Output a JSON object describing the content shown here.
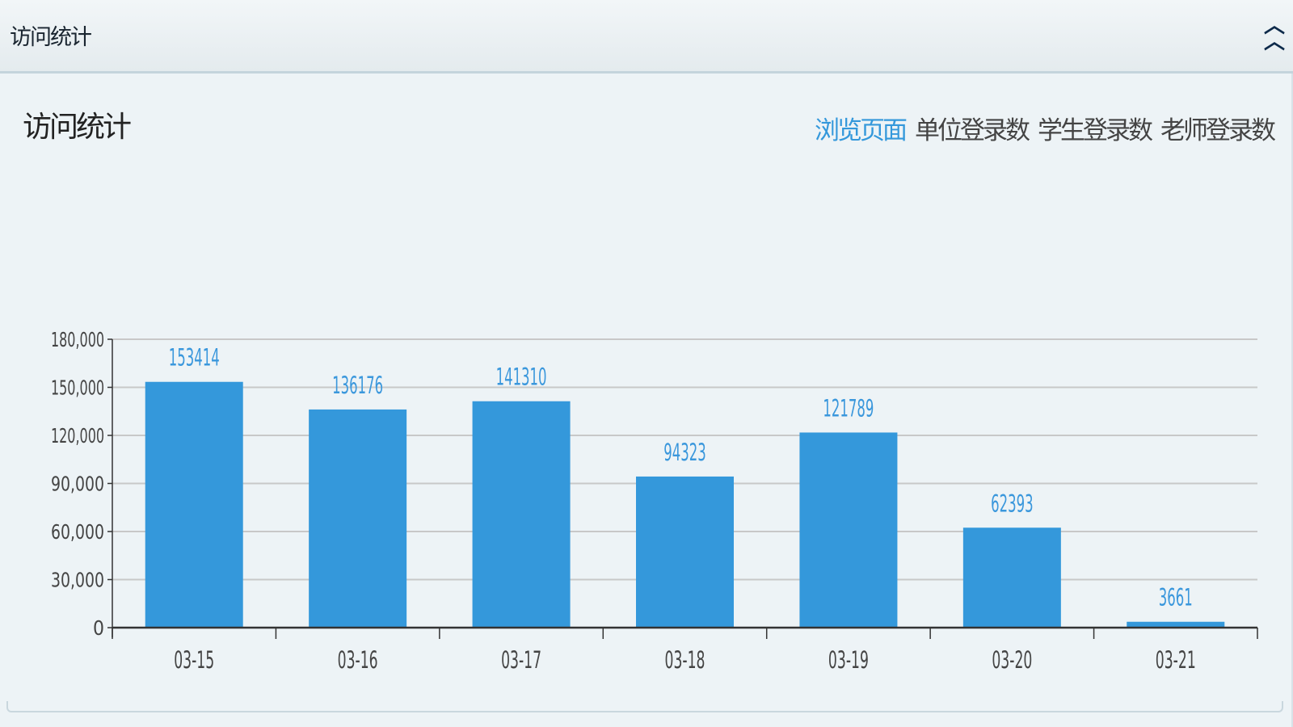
{
  "header": {
    "title": "访问统计",
    "collapse_icon": "double-chevron-up-icon"
  },
  "chart_title": "访问统计",
  "legend": [
    {
      "label": "浏览页面",
      "active": true
    },
    {
      "label": "单位登录数",
      "active": false
    },
    {
      "label": "学生登录数",
      "active": false
    },
    {
      "label": "老师登录数",
      "active": false
    }
  ],
  "colors": {
    "bar": "#3498db",
    "active": "#3498db",
    "label": "#3a97dc"
  },
  "chart_data": {
    "type": "bar",
    "categories": [
      "03-15",
      "03-16",
      "03-17",
      "03-18",
      "03-19",
      "03-20",
      "03-21"
    ],
    "values": [
      153414,
      136176,
      141310,
      94323,
      121789,
      62393,
      3661
    ],
    "ylim": [
      0,
      180000
    ],
    "yticks": [
      "0",
      "30,000",
      "60,000",
      "90,000",
      "120,000",
      "150,000",
      "180,000"
    ],
    "grid": true,
    "data_labels": true
  }
}
